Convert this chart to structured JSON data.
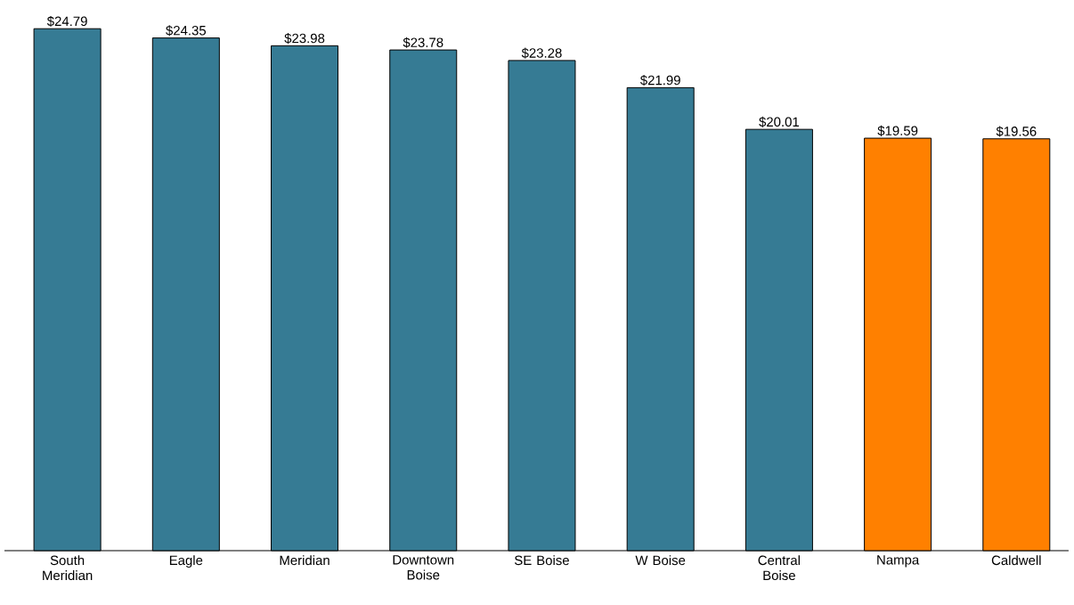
{
  "chart_data": {
    "type": "bar",
    "categories": [
      "South Meridian",
      "Eagle",
      "Meridian",
      "Downtown Boise",
      "SE Boise",
      "W Boise",
      "Central Boise",
      "Nampa",
      "Caldwell"
    ],
    "values": [
      24.79,
      24.35,
      23.98,
      23.78,
      23.28,
      21.99,
      20.01,
      19.59,
      19.56
    ],
    "value_labels": [
      "$24.79",
      "$24.35",
      "$23.98",
      "$23.78",
      "$23.28",
      "$21.99",
      "$20.01",
      "$19.59",
      "$19.56"
    ],
    "colors": [
      "#367b94",
      "#367b94",
      "#367b94",
      "#367b94",
      "#367b94",
      "#367b94",
      "#367b94",
      "#ff8000",
      "#ff8000"
    ]
  }
}
